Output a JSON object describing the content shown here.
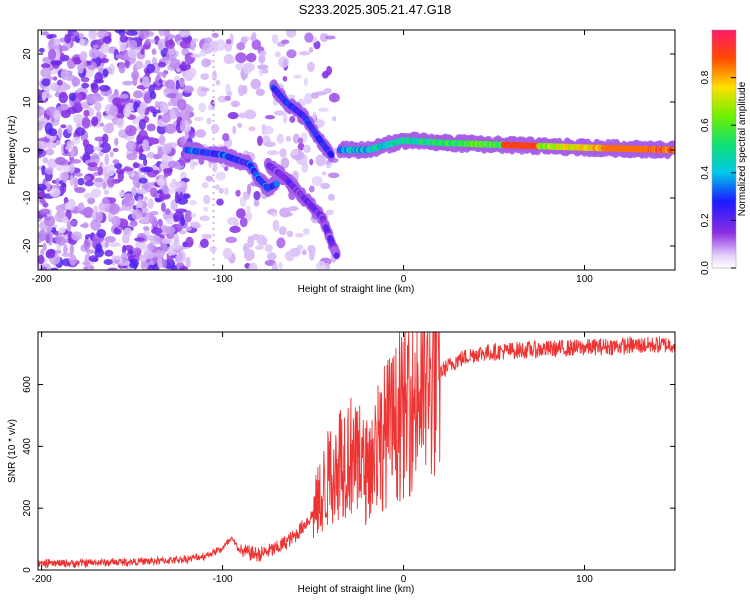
{
  "title": "S233.2025.305.21.47.G18",
  "chart_data": [
    {
      "type": "heatmap",
      "name": "spectrogram",
      "xlabel": "Height of straight line (km)",
      "ylabel": "Frequency (Hz)",
      "xlim": [
        -202,
        150
      ],
      "ylim": [
        -25,
        25
      ],
      "xticks": [
        -200,
        -100,
        0,
        100
      ],
      "yticks": [
        -20,
        -10,
        0,
        10,
        20
      ],
      "colorbar": {
        "label": "Normalized spectral amplitude",
        "range": [
          0,
          1
        ],
        "ticks": [
          "0.0",
          "0.2",
          "0.4",
          "0.6",
          "0.8"
        ],
        "tick_values": [
          0.0,
          0.2,
          0.4,
          0.6,
          0.8
        ]
      },
      "features": [
        {
          "name": "main-trace-left",
          "x": [
            -120,
            -100,
            -85,
            -80,
            -75,
            -70
          ],
          "y": [
            0,
            -1,
            -3,
            -6,
            -8,
            -7
          ],
          "amp": 0.35
        },
        {
          "name": "upper-branch",
          "x": [
            -72,
            -65,
            -55,
            -48,
            -40
          ],
          "y": [
            13,
            10,
            7,
            3,
            -1
          ],
          "amp": 0.3
        },
        {
          "name": "lower-branch",
          "x": [
            -75,
            -65,
            -55,
            -45,
            -37
          ],
          "y": [
            -3,
            -6,
            -10,
            -14,
            -22
          ],
          "amp": 0.2
        },
        {
          "name": "main-trace-right",
          "x": [
            -35,
            -20,
            0,
            20,
            60,
            100,
            150
          ],
          "y": [
            0,
            0,
            2,
            1.5,
            1,
            0.5,
            0
          ],
          "amp": 0.85
        }
      ]
    },
    {
      "type": "line",
      "name": "snr",
      "xlabel": "Height of straight line (km)",
      "ylabel": "SNR (10 * v/v)",
      "xlim": [
        -202,
        150
      ],
      "ylim": [
        0,
        770
      ],
      "xticks": [
        -200,
        -100,
        0,
        100
      ],
      "yticks": [
        0,
        200,
        400,
        600
      ],
      "color": "#ee3333",
      "x": [
        -202,
        -180,
        -160,
        -140,
        -120,
        -110,
        -100,
        -95,
        -90,
        -80,
        -70,
        -60,
        -50,
        -45,
        -40,
        -35,
        -30,
        -25,
        -20,
        -15,
        -10,
        -5,
        0,
        5,
        10,
        15,
        20,
        25,
        30,
        40,
        60,
        80,
        100,
        120,
        150
      ],
      "values": [
        20,
        22,
        25,
        28,
        35,
        45,
        70,
        100,
        60,
        50,
        70,
        110,
        180,
        250,
        320,
        360,
        380,
        330,
        320,
        390,
        440,
        470,
        500,
        540,
        580,
        600,
        640,
        660,
        680,
        700,
        710,
        715,
        720,
        725,
        730
      ]
    }
  ]
}
